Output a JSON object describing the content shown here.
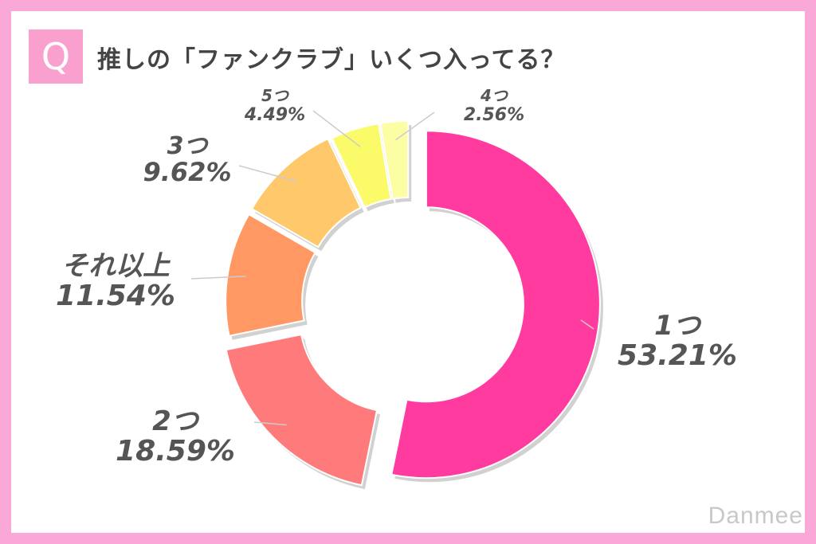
{
  "header": {
    "badge": "Q",
    "question": "推しの「ファンクラブ」いくつ入ってる？"
  },
  "brand": "Danmee",
  "chart_data": {
    "type": "pie",
    "donut": true,
    "categories": [
      "1つ",
      "2つ",
      "それ以上",
      "3つ",
      "5つ",
      "4つ"
    ],
    "values": [
      53.21,
      18.59,
      11.54,
      9.62,
      4.49,
      2.56
    ],
    "value_labels": [
      "53.21%",
      "18.59%",
      "11.54%",
      "9.62%",
      "4.49%",
      "2.56%"
    ],
    "colors": [
      "#ff3ba0",
      "#ff7b7b",
      "#ff9863",
      "#ffc86a",
      "#fbfb6a",
      "#fdfda3"
    ]
  }
}
